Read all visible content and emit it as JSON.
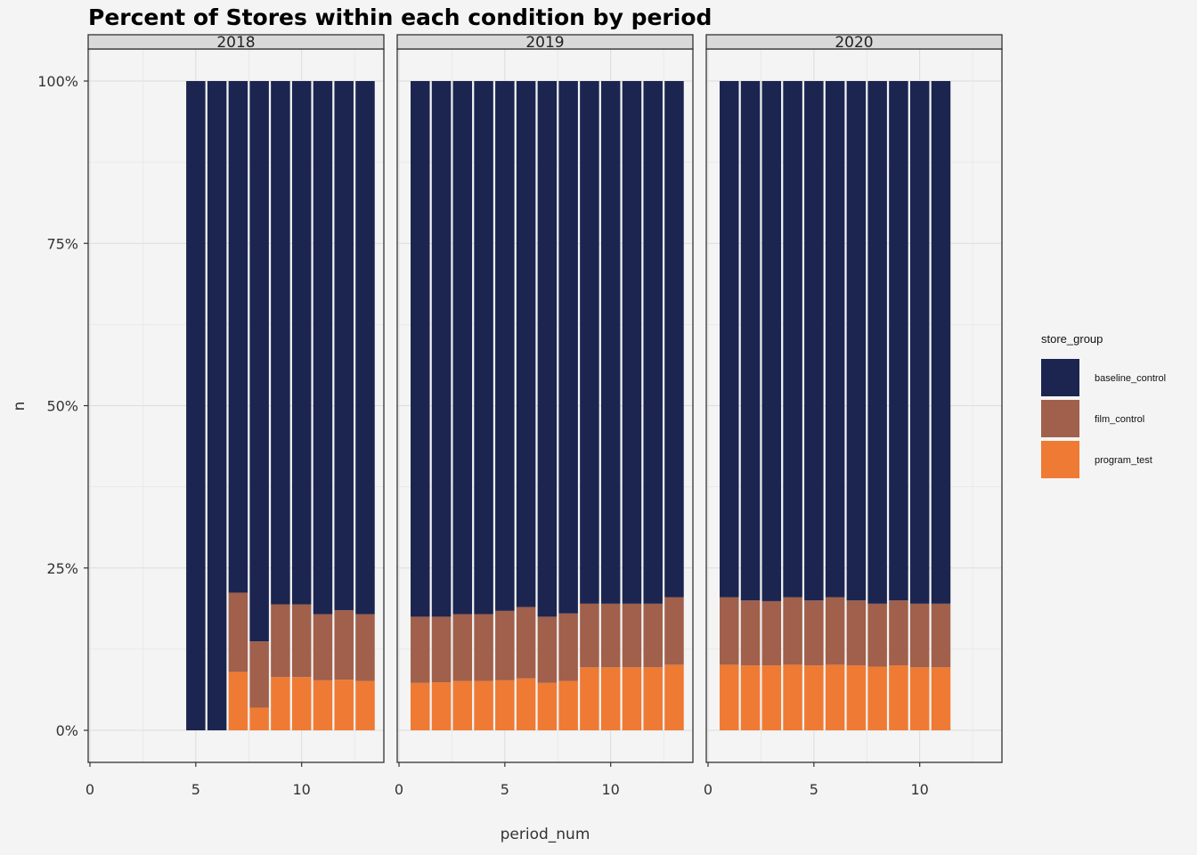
{
  "chart_data": {
    "type": "bar",
    "stacked": true,
    "position": "fill",
    "title": "Percent of Stores within each condition by period",
    "xlabel": "period_num",
    "ylabel": "n",
    "xlim": [
      0,
      13.8
    ],
    "ylim": [
      0,
      1
    ],
    "x_ticks": [
      "0",
      "5",
      "10"
    ],
    "y_ticks": [
      "0%",
      "25%",
      "50%",
      "75%",
      "100%"
    ],
    "grid": true,
    "legend": {
      "title": "store_group",
      "position": "right",
      "entries": [
        "baseline_control",
        "film_control",
        "program_test"
      ]
    },
    "colors": {
      "baseline_control": "#1b2550",
      "film_control": "#a0604b",
      "program_test": "#ef7a33"
    },
    "panels": [
      {
        "label": "2018",
        "periods": [
          5,
          6,
          7,
          8,
          9,
          10,
          11,
          12,
          13
        ],
        "series": [
          {
            "name": "program_test",
            "values": [
              0,
              0,
              0.09,
              0.035,
              0.082,
              0.082,
              0.077,
              0.078,
              0.076
            ]
          },
          {
            "name": "film_control",
            "values": [
              0,
              0,
              0.122,
              0.102,
              0.112,
              0.112,
              0.102,
              0.107,
              0.103
            ]
          },
          {
            "name": "baseline_control",
            "values": [
              1.0,
              1.0,
              0.788,
              0.863,
              0.806,
              0.806,
              0.821,
              0.815,
              0.821
            ]
          }
        ]
      },
      {
        "label": "2019",
        "periods": [
          1,
          2,
          3,
          4,
          5,
          6,
          7,
          8,
          9,
          10,
          11,
          12,
          13
        ],
        "series": [
          {
            "name": "program_test",
            "values": [
              0.073,
              0.074,
              0.076,
              0.076,
              0.077,
              0.08,
              0.073,
              0.076,
              0.097,
              0.097,
              0.097,
              0.097,
              0.101
            ]
          },
          {
            "name": "film_control",
            "values": [
              0.102,
              0.101,
              0.103,
              0.103,
              0.107,
              0.11,
              0.102,
              0.104,
              0.098,
              0.098,
              0.098,
              0.098,
              0.104
            ]
          },
          {
            "name": "baseline_control",
            "values": [
              0.825,
              0.825,
              0.821,
              0.821,
              0.816,
              0.81,
              0.825,
              0.82,
              0.805,
              0.805,
              0.805,
              0.805,
              0.795
            ]
          }
        ]
      },
      {
        "label": "2020",
        "periods": [
          1,
          2,
          3,
          4,
          5,
          6,
          7,
          8,
          9,
          10,
          11
        ],
        "series": [
          {
            "name": "program_test",
            "values": [
              0.101,
              0.1,
              0.1,
              0.101,
              0.1,
              0.101,
              0.1,
              0.098,
              0.1,
              0.097,
              0.097
            ]
          },
          {
            "name": "film_control",
            "values": [
              0.104,
              0.1,
              0.099,
              0.104,
              0.1,
              0.104,
              0.1,
              0.097,
              0.1,
              0.098,
              0.098
            ]
          },
          {
            "name": "baseline_control",
            "values": [
              0.795,
              0.8,
              0.801,
              0.795,
              0.8,
              0.795,
              0.8,
              0.805,
              0.8,
              0.805,
              0.805
            ]
          }
        ]
      }
    ]
  }
}
